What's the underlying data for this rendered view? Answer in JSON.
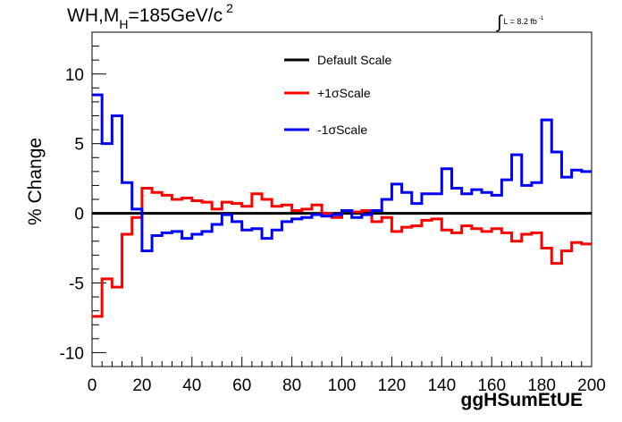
{
  "header": {
    "title_prefix": "WH,M",
    "title_sub": "H",
    "title_value": "=185GeV/c",
    "title_sup": "2",
    "lumi_text": "L = 8.2 fb",
    "lumi_sup": "-1"
  },
  "chart_data": {
    "type": "line",
    "style": "step",
    "xlabel": "ggHSumEtUE",
    "ylabel": "% Change",
    "xlim": [
      0,
      200
    ],
    "ylim": [
      -11,
      13
    ],
    "xticks": [
      0,
      20,
      40,
      60,
      80,
      100,
      120,
      140,
      160,
      180,
      200
    ],
    "yticks": [
      -10,
      -5,
      0,
      5,
      10
    ],
    "grid": false,
    "legend_position": "top-center",
    "bin_width": 4,
    "x": [
      0,
      4,
      8,
      12,
      16,
      20,
      24,
      28,
      32,
      36,
      40,
      44,
      48,
      52,
      56,
      60,
      64,
      68,
      72,
      76,
      80,
      84,
      88,
      92,
      96,
      100,
      104,
      108,
      112,
      116,
      120,
      124,
      128,
      132,
      136,
      140,
      144,
      148,
      152,
      156,
      160,
      164,
      168,
      172,
      176,
      180,
      184,
      188,
      192,
      196
    ],
    "series": [
      {
        "name": "Default Scale",
        "color": "#000000",
        "values": [
          0,
          0,
          0,
          0,
          0,
          0,
          0,
          0,
          0,
          0,
          0,
          0,
          0,
          0,
          0,
          0,
          0,
          0,
          0,
          0,
          0,
          0,
          0,
          0,
          0,
          0,
          0,
          0,
          0,
          0,
          0,
          0,
          0,
          0,
          0,
          0,
          0,
          0,
          0,
          0,
          0,
          0,
          0,
          0,
          0,
          0,
          0,
          0,
          0,
          0
        ]
      },
      {
        "name": "+1σScale",
        "color": "#ff0000",
        "values": [
          -7.4,
          -4.7,
          -5.3,
          -1.5,
          -0.3,
          1.8,
          1.5,
          1.3,
          1.0,
          1.1,
          0.9,
          0.8,
          0.3,
          0.8,
          0.7,
          0.5,
          1.4,
          1.0,
          0.5,
          0.6,
          0.2,
          0.3,
          0.6,
          0.0,
          -0.3,
          0.2,
          0.1,
          0.2,
          -0.6,
          -0.3,
          -1.3,
          -1.0,
          -0.9,
          -0.5,
          -0.4,
          -1.2,
          -1.4,
          -0.9,
          -1.1,
          -1.3,
          -1.1,
          -1.4,
          -2.0,
          -1.5,
          -1.4,
          -2.5,
          -3.6,
          -2.7,
          -2.1,
          -2.2
        ]
      },
      {
        "name": "-1σScale",
        "color": "#0000ff",
        "values": [
          8.5,
          5.0,
          7.0,
          2.2,
          0.3,
          -2.7,
          -1.6,
          -1.4,
          -1.3,
          -1.8,
          -1.5,
          -1.3,
          -0.8,
          -0.1,
          -0.6,
          -1.2,
          -1.1,
          -1.8,
          -1.2,
          -0.6,
          -0.4,
          -0.3,
          -0.1,
          -0.2,
          -0.1,
          0.2,
          -0.3,
          -0.1,
          0.2,
          1.0,
          2.1,
          1.5,
          0.7,
          1.4,
          1.4,
          3.2,
          1.8,
          1.4,
          1.7,
          1.5,
          1.3,
          2.4,
          4.2,
          2.0,
          2.2,
          6.7,
          4.4,
          2.6,
          3.1,
          3.0
        ]
      }
    ]
  }
}
